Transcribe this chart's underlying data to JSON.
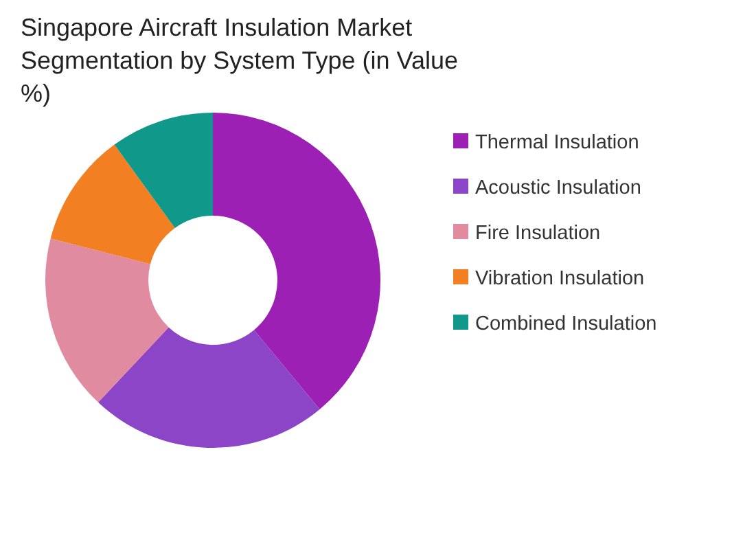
{
  "chart_data": {
    "type": "donut",
    "title": "Singapore Aircraft Insulation Market Segmentation by System Type (in Value %)",
    "categories": [
      "Thermal Insulation",
      "Acoustic Insulation",
      "Fire Insulation",
      "Vibration Insulation",
      "Combined Insulation"
    ],
    "values": [
      39,
      23,
      17,
      11,
      10
    ],
    "colors": [
      "#9b20b3",
      "#8b45c6",
      "#e08ba0",
      "#f27f22",
      "#10998a"
    ],
    "legend": "right"
  }
}
